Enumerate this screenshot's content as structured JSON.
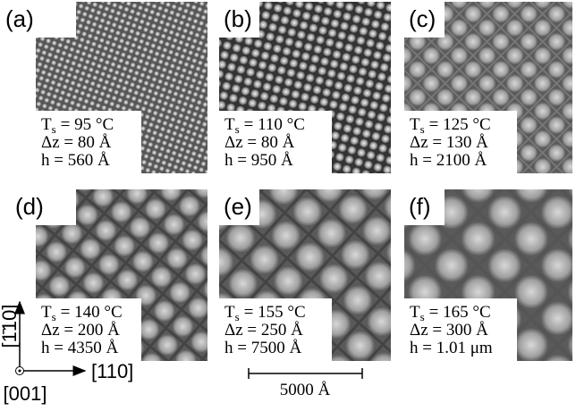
{
  "panels": [
    {
      "label": "(a)",
      "ts": {
        "symbol": "T",
        "subscript": "s",
        "value": "= 95 °C"
      },
      "dz": "Δz = 80 Å",
      "h": "h = 560 Å"
    },
    {
      "label": "(b)",
      "ts": {
        "symbol": "T",
        "subscript": "s",
        "value": "= 110 °C"
      },
      "dz": "Δz = 80 Å",
      "h": "h = 950 Å"
    },
    {
      "label": "(c)",
      "ts": {
        "symbol": "T",
        "subscript": "s",
        "value": "= 125 °C"
      },
      "dz": "Δz = 130 Å",
      "h": "h = 2100 Å"
    },
    {
      "label": "(d)",
      "ts": {
        "symbol": "T",
        "subscript": "s",
        "value": "= 140 °C"
      },
      "dz": "Δz = 200 Å",
      "h": "h = 4350 Å"
    },
    {
      "label": "(e)",
      "ts": {
        "symbol": "T",
        "subscript": "s",
        "value": "= 155 °C"
      },
      "dz": "Δz = 250 Å",
      "h": "h = 7500 Å"
    },
    {
      "label": "(f)",
      "ts": {
        "symbol": "T",
        "subscript": "s",
        "value": "= 165 °C"
      },
      "dz": "Δz = 300 Å",
      "h": "h = 1.01 μm"
    }
  ],
  "axes": {
    "vertical": "[1̄10]",
    "horizontal": "[110]",
    "normal": "[001]"
  },
  "scale_bar": "5000 Å"
}
